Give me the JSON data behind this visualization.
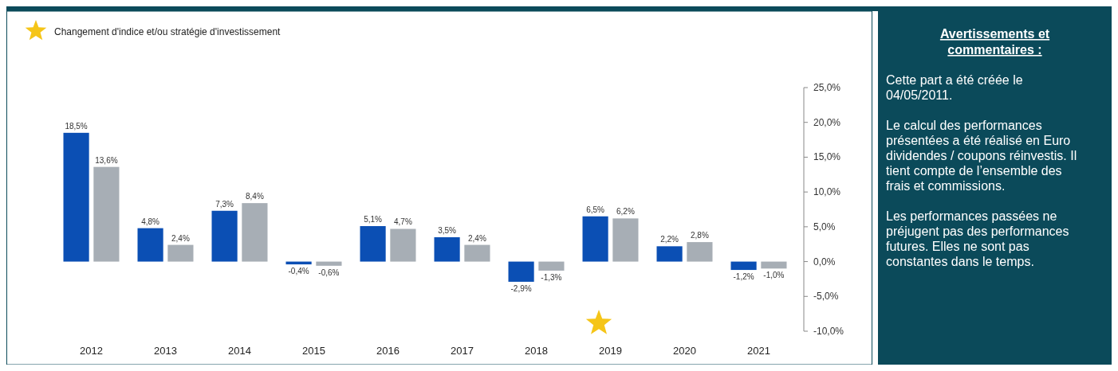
{
  "chart_data": {
    "type": "bar",
    "categories": [
      "2012",
      "2013",
      "2014",
      "2015",
      "2016",
      "2017",
      "2018",
      "2019",
      "2020",
      "2021"
    ],
    "series": [
      {
        "color": "#0b4fb4",
        "values": [
          18.5,
          4.8,
          7.3,
          -0.4,
          5.1,
          3.5,
          -2.9,
          6.5,
          2.2,
          -1.2
        ],
        "value_labels": [
          "18,5%",
          "4,8%",
          "7,3%",
          "-0,4%",
          "5,1%",
          "3,5%",
          "-2,9%",
          "6,5%",
          "2,2%",
          "-1,2%"
        ]
      },
      {
        "color": "#a7aeb5",
        "values": [
          13.6,
          2.4,
          8.4,
          -0.6,
          4.7,
          2.4,
          -1.3,
          6.2,
          2.8,
          -1.0
        ],
        "value_labels": [
          "13,6%",
          "2,4%",
          "8,4%",
          "-0,6%",
          "4,7%",
          "2,4%",
          "-1,3%",
          "6,2%",
          "2,8%",
          "-1,0%"
        ]
      }
    ],
    "ylim": [
      -10,
      25
    ],
    "yticks": [
      {
        "value": -10,
        "label": "-10,0%"
      },
      {
        "value": -5,
        "label": "-5,0%"
      },
      {
        "value": 0,
        "label": "0,0%"
      },
      {
        "value": 5,
        "label": "5,0%"
      },
      {
        "value": 10,
        "label": "10,0%"
      },
      {
        "value": 15,
        "label": "15,0%"
      },
      {
        "value": 20,
        "label": "20,0%"
      },
      {
        "value": 25,
        "label": "25,0%"
      }
    ],
    "grid": false,
    "annotations": [
      "Changement d'indice et/ou stratégie d'investissement",
      "Avertissements et commentaires :",
      "Cette part a été créée le 04/05/2011.",
      "Le calcul des performances présentées a été réalisé en Euro dividendes / coupons réinvestis. Il tient compte de l’ensemble des frais et commissions.",
      "Les performances passées ne préjugent pas des performances futures. Elles ne sont pas constantes dans le temps."
    ]
  }
}
